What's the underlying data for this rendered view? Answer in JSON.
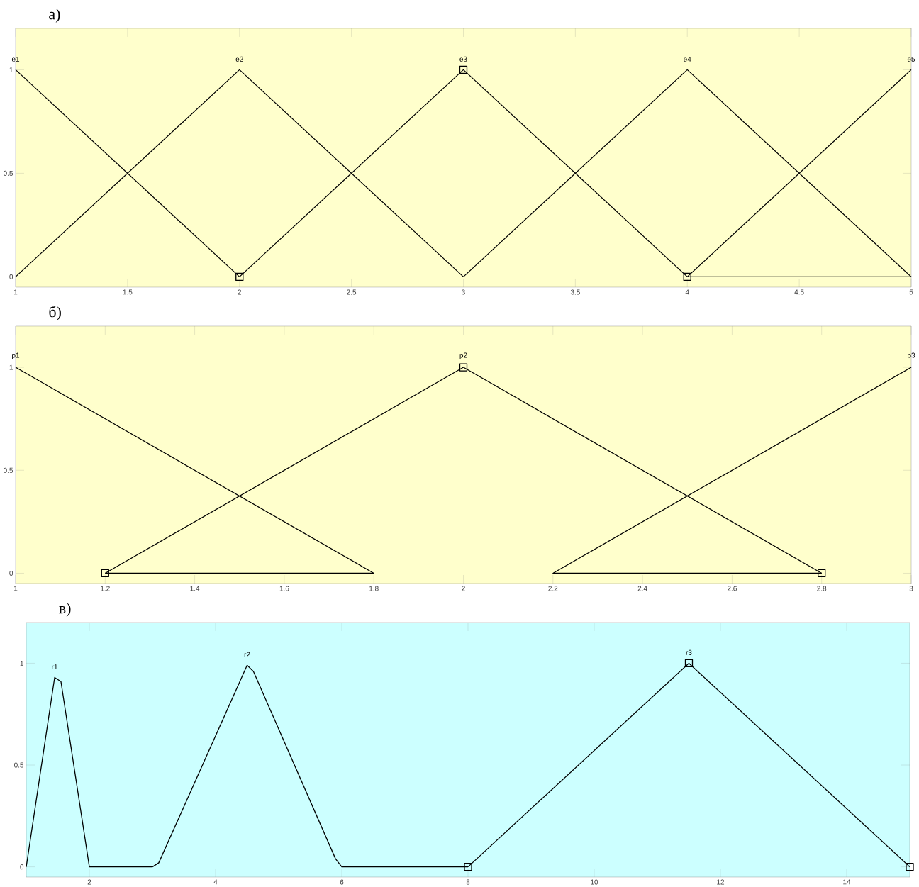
{
  "chart_data": [
    {
      "type": "line",
      "title": "а)",
      "xlim": [
        1,
        5
      ],
      "ylim": [
        -0.05,
        1.2
      ],
      "xticks": [
        1,
        1.5,
        2,
        2.5,
        3,
        3.5,
        4,
        4.5,
        5
      ],
      "yticks": [
        0,
        0.5,
        1
      ],
      "grid": false,
      "series": [
        {
          "name": "e1",
          "color": "#000000",
          "x": [
            1,
            2
          ],
          "values": [
            1,
            0
          ]
        },
        {
          "name": "e2",
          "color": "#000000",
          "x": [
            1,
            2,
            3
          ],
          "values": [
            0,
            1,
            0
          ]
        },
        {
          "name": "e3",
          "color": "#000000",
          "marker": "square",
          "x": [
            2,
            3,
            4
          ],
          "values": [
            0,
            1,
            0
          ]
        },
        {
          "name": "e4",
          "color": "#000000",
          "x": [
            3,
            4,
            5
          ],
          "values": [
            0,
            1,
            0
          ]
        },
        {
          "name": "e5",
          "color": "#000000",
          "x": [
            4,
            5,
            4,
            5
          ],
          "values": [
            0,
            0,
            0,
            1
          ]
        }
      ]
    },
    {
      "type": "line",
      "title": "б)",
      "xlim": [
        1,
        3
      ],
      "ylim": [
        -0.05,
        1.2
      ],
      "xticks": [
        1,
        1.2,
        1.4,
        1.6,
        1.8,
        2,
        2.2,
        2.4,
        2.6,
        2.8,
        3
      ],
      "yticks": [
        0,
        0.5,
        1
      ],
      "grid": false,
      "series": [
        {
          "name": "p1",
          "color": "#000000",
          "x": [
            1,
            1.8,
            1.2
          ],
          "values": [
            1,
            0,
            0
          ]
        },
        {
          "name": "p2",
          "color": "#000000",
          "marker": "square",
          "x": [
            1.2,
            2,
            2.8
          ],
          "values": [
            0,
            1,
            0
          ]
        },
        {
          "name": "p3",
          "color": "#000000",
          "x": [
            2.8,
            2.2,
            3
          ],
          "values": [
            0,
            0,
            1
          ]
        }
      ]
    },
    {
      "type": "line",
      "title": "в)",
      "xlim": [
        1,
        15
      ],
      "ylim": [
        -0.05,
        1.2
      ],
      "xticks": [
        2,
        4,
        6,
        8,
        10,
        12,
        14
      ],
      "yticks": [
        0,
        0.5,
        1
      ],
      "grid": false,
      "series": [
        {
          "name": "r1",
          "color": "#000000",
          "x": [
            1,
            1.45,
            1.55,
            2,
            3
          ],
          "values": [
            0,
            0.93,
            0.91,
            0,
            0
          ]
        },
        {
          "name": "r2",
          "color": "#000000",
          "x": [
            3,
            3.1,
            4.5,
            4.6,
            5.9,
            6,
            8
          ],
          "values": [
            0,
            0.02,
            0.99,
            0.96,
            0.04,
            0,
            0
          ]
        },
        {
          "name": "r3",
          "color": "#000000",
          "marker": "square",
          "x": [
            8,
            11.5,
            15
          ],
          "values": [
            0,
            1,
            0
          ]
        }
      ]
    }
  ]
}
